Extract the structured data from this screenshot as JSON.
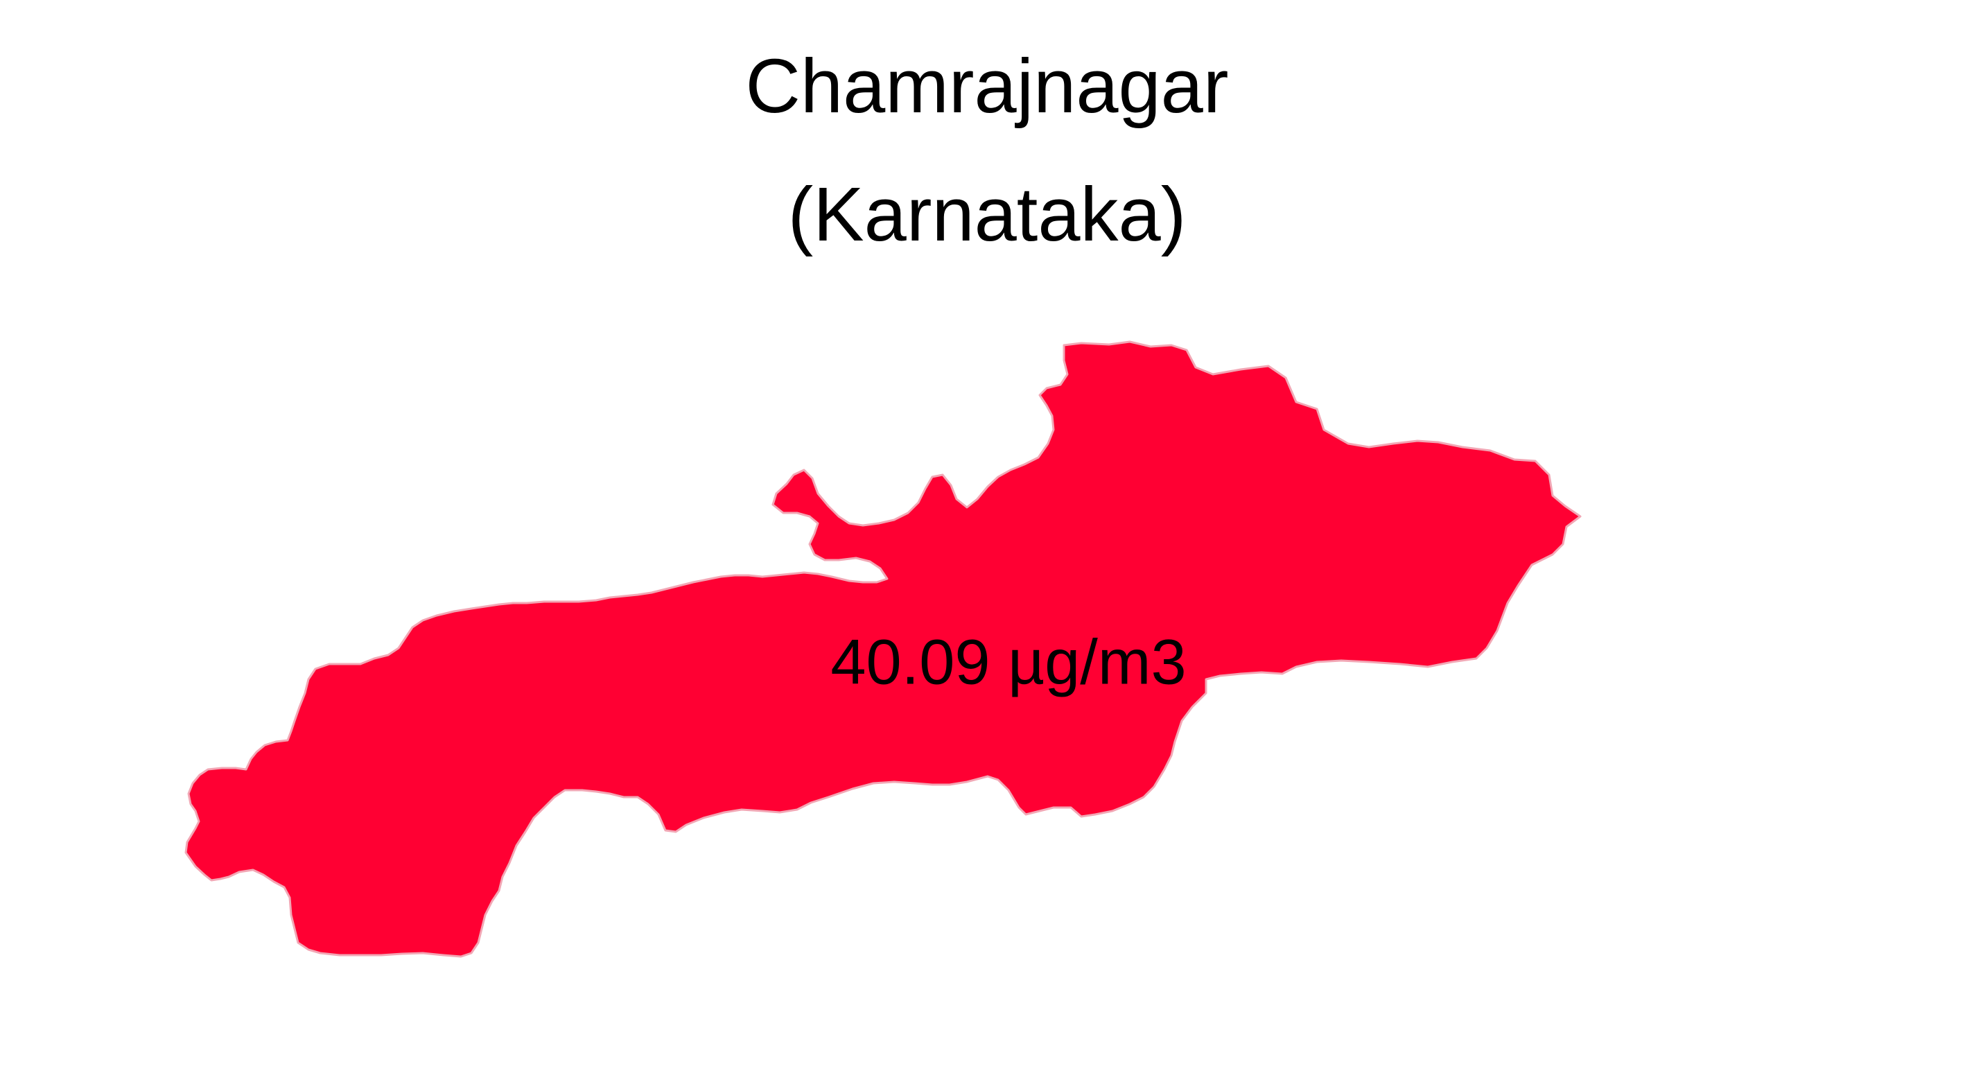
{
  "title": {
    "line1": "Chamrajnagar",
    "line2": "(Karnataka)"
  },
  "region": {
    "name": "Chamrajnagar",
    "state": "Karnataka",
    "value_label": "40.09 µg/m3",
    "fill_color": "#FF0033",
    "stroke_color": "#F2A7B5"
  }
}
